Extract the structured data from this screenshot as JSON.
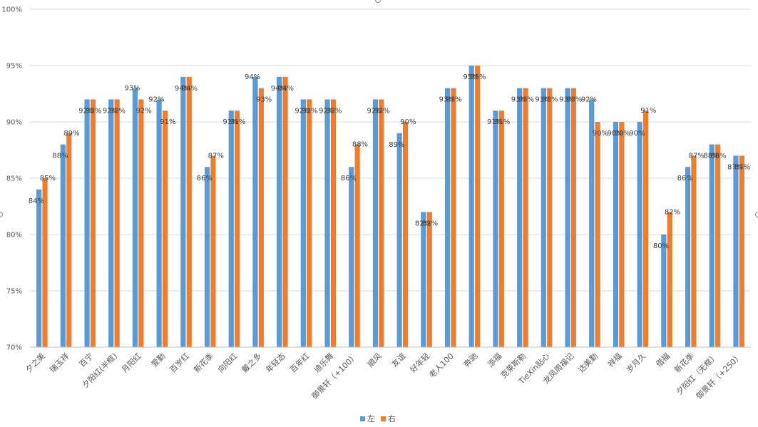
{
  "colors": {
    "left": "#5b9bd5",
    "right": "#ed7d31",
    "grid": "#d9d9d9",
    "axis": "#bfbfbf"
  },
  "chart_data": {
    "type": "bar",
    "title": "",
    "xlabel": "",
    "ylabel": "",
    "ylim": [
      70,
      100
    ],
    "yticks": [
      70,
      75,
      80,
      85,
      90,
      95,
      100
    ],
    "ytick_labels": [
      "70%",
      "75%",
      "80%",
      "85%",
      "90%",
      "95%",
      "100%"
    ],
    "grid": true,
    "legend_position": "bottom",
    "categories": [
      "夕之美",
      "瑞玉祥",
      "百宁",
      "夕阳红(半框)",
      "月阳红",
      "爱勤",
      "百岁红",
      "新花季",
      "向阳红",
      "戴之多",
      "年轻态",
      "百年红",
      "迪乐舞",
      "御景轩（+100）",
      "顺风",
      "友谊",
      "好年轻",
      "老人100",
      "奔驰",
      "添福",
      "克莱斯勒",
      "TieXin贴心",
      "龙凤周福记",
      "达美勤",
      "祥福",
      "岁月久",
      "借福",
      "新花季",
      "夕阳红（无框）",
      "御景轩（+250）"
    ],
    "series": [
      {
        "name": "左",
        "values": [
          84,
          88,
          92,
          92,
          93,
          92,
          94,
          86,
          91,
          94,
          94,
          92,
          92,
          86,
          92,
          89,
          82,
          93,
          95,
          91,
          93,
          93,
          93,
          92,
          90,
          90,
          80,
          86,
          88,
          87
        ]
      },
      {
        "name": "右",
        "values": [
          85,
          89,
          92,
          92,
          92,
          91,
          94,
          87,
          91,
          93,
          94,
          92,
          92,
          88,
          92,
          90,
          82,
          93,
          95,
          91,
          93,
          93,
          93,
          90,
          90,
          91,
          82,
          87,
          88,
          87
        ]
      }
    ],
    "data_labels": {
      "left": [
        "84%",
        "88%",
        "92%",
        "92%",
        "93%",
        "92%",
        "94%",
        "86%",
        "91%",
        "94%",
        "94%",
        "92%",
        "92%",
        "86%",
        "92%",
        "89%",
        "82%",
        "93%",
        "95%",
        "91%",
        "93%",
        "93%",
        "93%",
        "92%",
        "90%",
        "90%",
        "80%",
        "86%",
        "88%",
        "87%"
      ],
      "right": [
        "85%",
        "89%",
        "92%",
        "92%",
        "92%",
        "91%",
        "94%",
        "87%",
        "91%",
        "93%",
        "94%",
        "92%",
        "92%",
        "88%",
        "92%",
        "90%",
        "82%",
        "93%",
        "95%",
        "91%",
        "93%",
        "93%",
        "93%",
        "90%",
        "90%",
        "91%",
        "82%",
        "87%",
        "88%",
        "87%"
      ]
    }
  },
  "legend": {
    "left_label": "左",
    "right_label": "右"
  }
}
